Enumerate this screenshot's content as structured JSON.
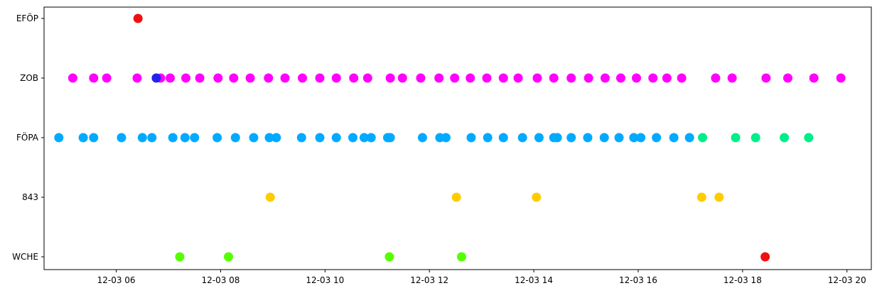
{
  "chart_data": {
    "type": "scatter",
    "title": "",
    "xlabel": "",
    "ylabel": "",
    "x_axis_kind": "datetime",
    "xlim": [
      "12-03 04:37",
      "12-03 20:28"
    ],
    "xticks": [
      {
        "value": "12-03 06:00",
        "label": "12-03 06"
      },
      {
        "value": "12-03 08:00",
        "label": "12-03 08"
      },
      {
        "value": "12-03 10:00",
        "label": "12-03 10"
      },
      {
        "value": "12-03 12:00",
        "label": "12-03 12"
      },
      {
        "value": "12-03 14:00",
        "label": "12-03 14"
      },
      {
        "value": "12-03 16:00",
        "label": "12-03 16"
      },
      {
        "value": "12-03 18:00",
        "label": "12-03 18"
      },
      {
        "value": "12-03 20:00",
        "label": "12-03 20"
      }
    ],
    "categories": [
      "WCHE",
      "843",
      "FÖPA",
      "ZOB",
      "EFÖP"
    ],
    "grid": false,
    "legend": "none",
    "series": [
      {
        "category": "EFÖP",
        "color": "#ee1111",
        "x": [
          "12-03 06:25"
        ]
      },
      {
        "category": "ZOB",
        "color": "#ff00ff",
        "x": [
          "12-03 05:10",
          "12-03 05:34",
          "12-03 05:49",
          "12-03 06:24",
          "12-03 06:51",
          "12-03 07:02",
          "12-03 07:20",
          "12-03 07:36",
          "12-03 07:57",
          "12-03 08:15",
          "12-03 08:34",
          "12-03 08:55",
          "12-03 09:14",
          "12-03 09:34",
          "12-03 09:54",
          "12-03 10:13",
          "12-03 10:33",
          "12-03 10:49",
          "12-03 11:15",
          "12-03 11:29",
          "12-03 11:50",
          "12-03 12:11",
          "12-03 12:29",
          "12-03 12:47",
          "12-03 13:06",
          "12-03 13:25",
          "12-03 13:42",
          "12-03 14:04",
          "12-03 14:23",
          "12-03 14:43",
          "12-03 15:03",
          "12-03 15:22",
          "12-03 15:40",
          "12-03 15:58",
          "12-03 16:17",
          "12-03 16:33",
          "12-03 16:50",
          "12-03 17:29",
          "12-03 17:48",
          "12-03 18:27",
          "12-03 18:52",
          "12-03 19:22",
          "12-03 19:53"
        ]
      },
      {
        "category": "ZOB",
        "color": "#2222ee",
        "x": [
          "12-03 06:46"
        ]
      },
      {
        "category": "FÖPA",
        "color": "#00aaff",
        "x": [
          "12-03 04:54",
          "12-03 05:22",
          "12-03 05:34",
          "12-03 06:06",
          "12-03 06:30",
          "12-03 06:41",
          "12-03 07:05",
          "12-03 07:19",
          "12-03 07:30",
          "12-03 07:56",
          "12-03 08:17",
          "12-03 08:38",
          "12-03 08:56",
          "12-03 09:04",
          "12-03 09:33",
          "12-03 09:54",
          "12-03 10:13",
          "12-03 10:32",
          "12-03 10:45",
          "12-03 10:53",
          "12-03 11:12",
          "12-03 11:15",
          "12-03 11:52",
          "12-03 12:12",
          "12-03 12:19",
          "12-03 12:48",
          "12-03 13:07",
          "12-03 13:25",
          "12-03 13:47",
          "12-03 14:06",
          "12-03 14:23",
          "12-03 14:27",
          "12-03 14:43",
          "12-03 15:02",
          "12-03 15:21",
          "12-03 15:38",
          "12-03 15:55",
          "12-03 16:03",
          "12-03 16:21",
          "12-03 16:41",
          "12-03 16:59"
        ]
      },
      {
        "category": "FÖPA",
        "color": "#00ee88",
        "x": [
          "12-03 17:14",
          "12-03 17:52",
          "12-03 18:15",
          "12-03 18:48",
          "12-03 19:16"
        ]
      },
      {
        "category": "843",
        "color": "#ffcc00",
        "x": [
          "12-03 08:57",
          "12-03 12:31",
          "12-03 14:03",
          "12-03 17:13",
          "12-03 17:33"
        ]
      },
      {
        "category": "WCHE",
        "color": "#55ff00",
        "x": [
          "12-03 07:13",
          "12-03 08:09",
          "12-03 11:14",
          "12-03 12:37"
        ]
      },
      {
        "category": "WCHE",
        "color": "#ee1111",
        "x": [
          "12-03 18:26"
        ]
      }
    ]
  }
}
